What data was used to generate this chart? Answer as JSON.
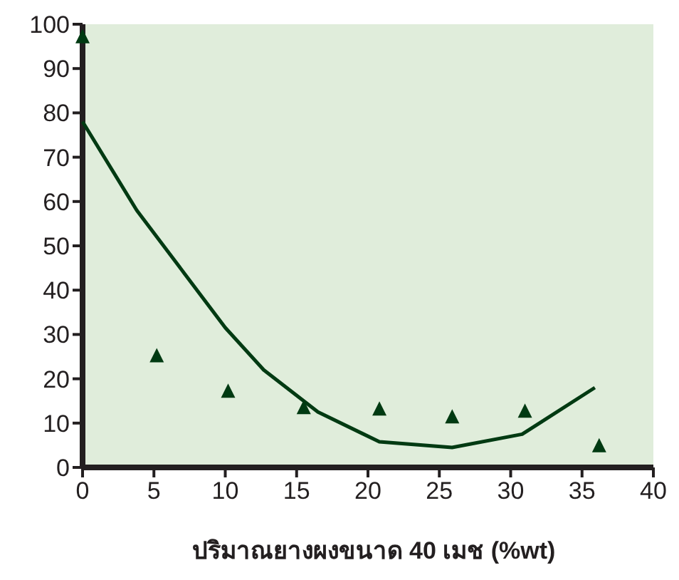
{
  "chart_data": {
    "type": "line",
    "xlabel": "ปริมาณยางผงขนาด 40 เมช (%wt)",
    "xlim": [
      0,
      40
    ],
    "xticks": [
      0,
      5,
      10,
      15,
      20,
      25,
      30,
      35,
      40
    ],
    "ylim": [
      0,
      100
    ],
    "yticks": [
      0,
      10,
      20,
      30,
      40,
      50,
      60,
      70,
      80,
      90,
      100
    ],
    "grid": false,
    "series": [
      {
        "color": "#003a12",
        "x": [
          0,
          3.8,
          10,
          12.7,
          16.5,
          20.8,
          25.9,
          30.8,
          35.9
        ],
        "values": [
          78,
          58,
          31.5,
          22,
          12.5,
          5.8,
          4.5,
          7.5,
          18
        ],
        "marker": "none",
        "line_style": "solid"
      },
      {
        "type": "scatter",
        "color": "#003a12",
        "x": [
          0,
          5.2,
          10.2,
          15.5,
          20.8,
          25.9,
          31,
          36.2
        ],
        "values": [
          97,
          25,
          17,
          13.3,
          13,
          11.2,
          12.5,
          4.7
        ],
        "marker": "triangle"
      }
    ]
  }
}
